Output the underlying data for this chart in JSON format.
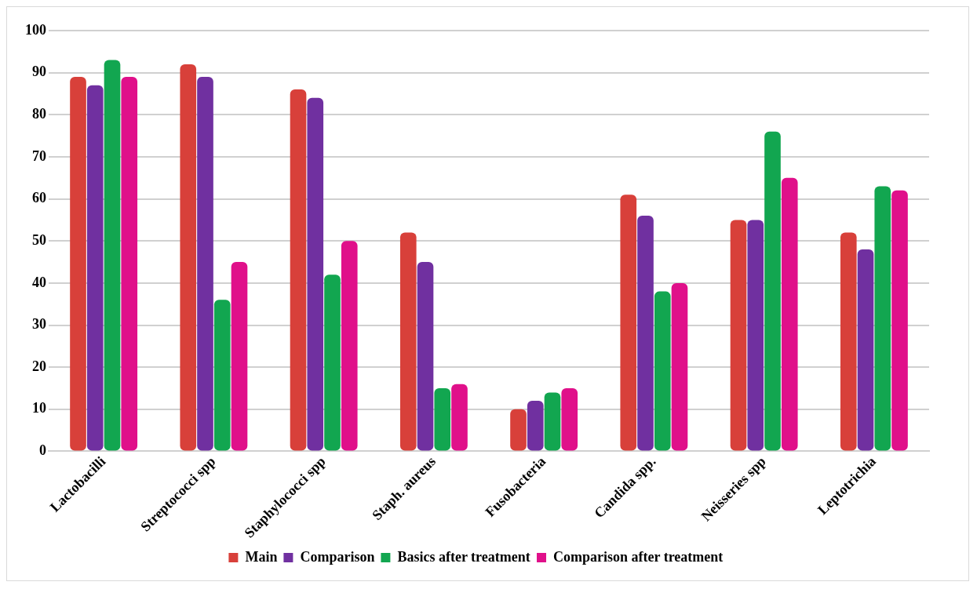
{
  "chart_data": {
    "type": "bar",
    "categories": [
      "Lactobacilli",
      "Streptococci spp",
      "Staphylococci spp",
      "Staph. aureus",
      "Fusobacteria",
      "Candida spp.",
      "Neisseries spp",
      "Leptotrichia"
    ],
    "series": [
      {
        "name": "Main",
        "color": "#d8403a",
        "values": [
          89,
          92,
          86,
          52,
          10,
          61,
          55,
          52
        ]
      },
      {
        "name": "Comparison",
        "color": "#7030a0",
        "values": [
          87,
          89,
          84,
          45,
          12,
          56,
          55,
          48
        ]
      },
      {
        "name": "Basics after treatment",
        "color": "#12a650",
        "values": [
          93,
          36,
          42,
          15,
          14,
          38,
          76,
          63
        ]
      },
      {
        "name": "Comparison after treatment",
        "color": "#e0108a",
        "values": [
          89,
          45,
          50,
          16,
          15,
          40,
          65,
          62
        ]
      }
    ],
    "ylim": [
      0,
      100
    ],
    "yticks": [
      0,
      10,
      20,
      30,
      40,
      50,
      60,
      70,
      80,
      90,
      100
    ],
    "grid": "y",
    "legend": "bottom"
  }
}
